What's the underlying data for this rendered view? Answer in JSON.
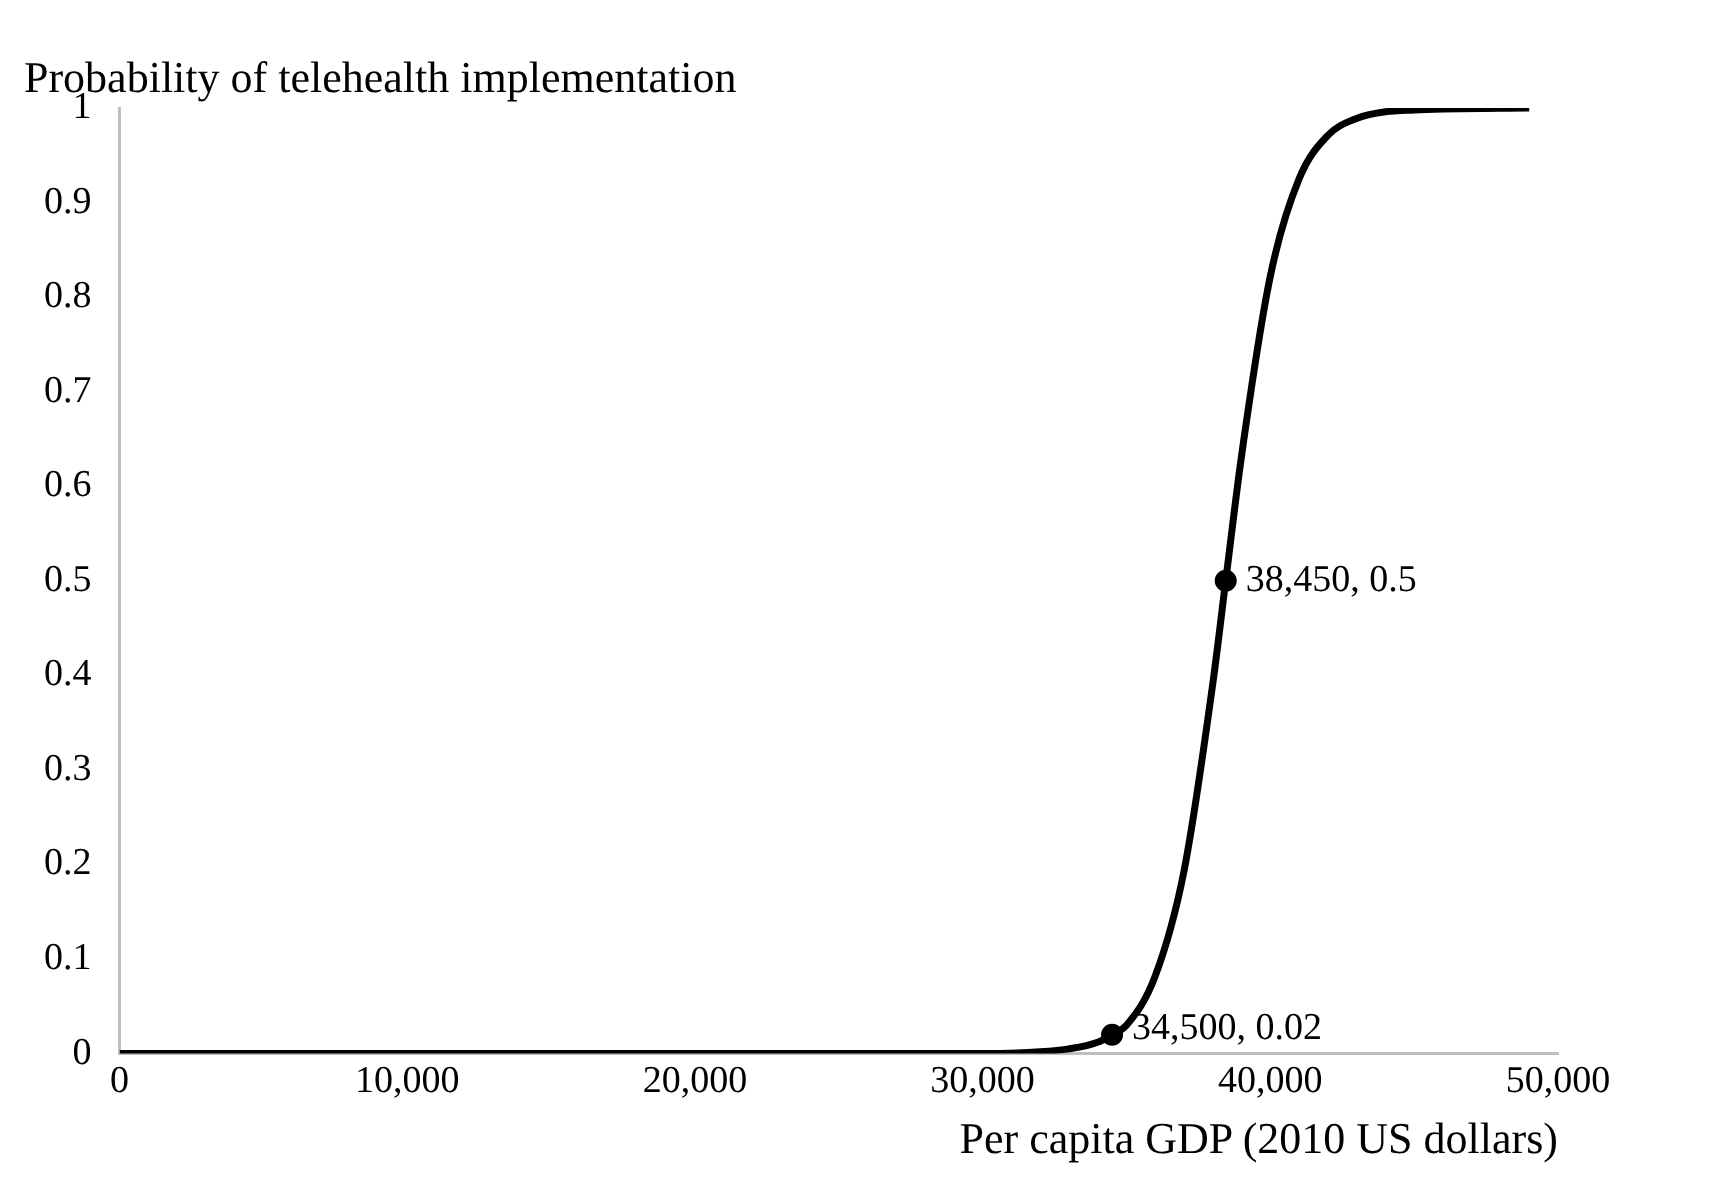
{
  "chart_data": {
    "type": "line",
    "ylabel": "Probability of telehealth implementation",
    "xlabel": "Per capita GDP (2010 US dollars)",
    "xlim": [
      0,
      50000
    ],
    "ylim": [
      0,
      1
    ],
    "xticks": [
      0,
      {
        "value": 10000,
        "label": "10,000"
      },
      {
        "value": 20000,
        "label": "20,000"
      },
      {
        "value": 30000,
        "label": "30,000"
      },
      {
        "value": 40000,
        "label": "40,000"
      },
      {
        "value": 50000,
        "label": "50,000"
      }
    ],
    "yticks": [
      0,
      0.1,
      0.2,
      0.3,
      0.4,
      0.5,
      0.6,
      0.7,
      0.8,
      0.9,
      1
    ],
    "grid": false,
    "legend": false,
    "series": [
      {
        "type": "line",
        "color": "#000000",
        "marker": "none",
        "x": [
          0,
          10000,
          20000,
          30000,
          32000,
          33000,
          34000,
          34500,
          35000,
          36000,
          37000,
          38000,
          38450,
          39000,
          40000,
          41000,
          42000,
          43000,
          44000,
          45000,
          46000,
          49000
        ],
        "values": [
          0,
          0,
          0,
          0,
          0.002,
          0.005,
          0.012,
          0.02,
          0.03,
          0.082,
          0.193,
          0.391,
          0.5,
          0.632,
          0.822,
          0.925,
          0.971,
          0.989,
          0.996,
          0.998,
          0.999,
          1
        ]
      },
      {
        "type": "scatter",
        "color": "#000000",
        "marker": "circle",
        "x": [
          34500,
          38450
        ],
        "values": [
          0.02,
          0.5
        ],
        "value_labels": [
          "34,500, 0.02",
          "38,450, 0.5"
        ]
      }
    ]
  }
}
